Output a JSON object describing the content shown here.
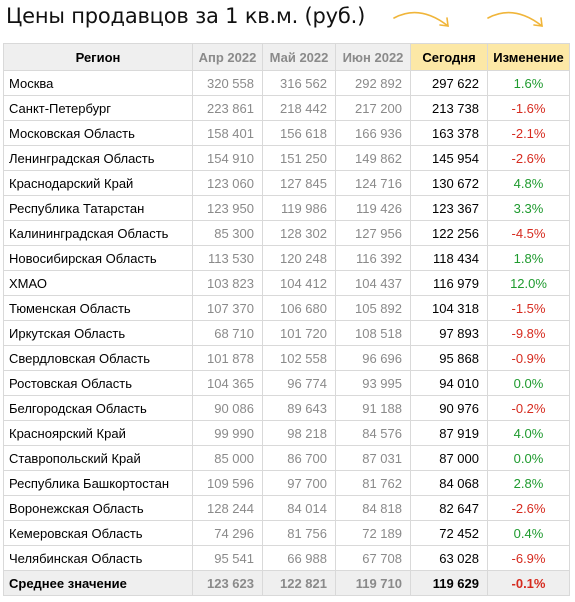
{
  "title": "Цены продавцов за 1 кв.м. (руб.)",
  "arrow_color": "#f0b53a",
  "headers": {
    "region": "Регион",
    "apr": "Апр 2022",
    "may": "Май 2022",
    "jun": "Июн 2022",
    "today": "Сегодня",
    "change": "Изменение"
  },
  "rows": [
    {
      "region": "Москва",
      "apr": "320 558",
      "may": "316 562",
      "jun": "292 892",
      "today": "297 622",
      "change": "1.6%"
    },
    {
      "region": "Санкт-Петербург",
      "apr": "223 861",
      "may": "218 442",
      "jun": "217 200",
      "today": "213 738",
      "change": "-1.6%"
    },
    {
      "region": "Московская Область",
      "apr": "158 401",
      "may": "156 618",
      "jun": "166 936",
      "today": "163 378",
      "change": "-2.1%"
    },
    {
      "region": "Ленинградская Область",
      "apr": "154 910",
      "may": "151 250",
      "jun": "149 862",
      "today": "145 954",
      "change": "-2.6%"
    },
    {
      "region": "Краснодарский Край",
      "apr": "123 060",
      "may": "127 845",
      "jun": "124 716",
      "today": "130 672",
      "change": "4.8%"
    },
    {
      "region": "Республика Татарстан",
      "apr": "123 950",
      "may": "119 986",
      "jun": "119 426",
      "today": "123 367",
      "change": "3.3%"
    },
    {
      "region": "Калининградская Область",
      "apr": "85 300",
      "may": "128 302",
      "jun": "127 956",
      "today": "122 256",
      "change": "-4.5%"
    },
    {
      "region": "Новосибирская Область",
      "apr": "113 530",
      "may": "120 248",
      "jun": "116 392",
      "today": "118 434",
      "change": "1.8%"
    },
    {
      "region": "ХМАО",
      "apr": "103 823",
      "may": "104 412",
      "jun": "104 437",
      "today": "116 979",
      "change": "12.0%"
    },
    {
      "region": "Тюменская Область",
      "apr": "107 370",
      "may": "106 680",
      "jun": "105 892",
      "today": "104 318",
      "change": "-1.5%"
    },
    {
      "region": "Иркутская Область",
      "apr": "68 710",
      "may": "101 720",
      "jun": "108 518",
      "today": "97 893",
      "change": "-9.8%"
    },
    {
      "region": "Свердловская Область",
      "apr": "101 878",
      "may": "102 558",
      "jun": "96 696",
      "today": "95 868",
      "change": "-0.9%"
    },
    {
      "region": "Ростовская Область",
      "apr": "104 365",
      "may": "96 774",
      "jun": "93 995",
      "today": "94 010",
      "change": "0.0%"
    },
    {
      "region": "Белгородская Область",
      "apr": "90 086",
      "may": "89 643",
      "jun": "91 188",
      "today": "90 976",
      "change": "-0.2%"
    },
    {
      "region": "Красноярский Край",
      "apr": "99 990",
      "may": "98 218",
      "jun": "84 576",
      "today": "87 919",
      "change": "4.0%"
    },
    {
      "region": "Ставропольский Край",
      "apr": "85 000",
      "may": "86 700",
      "jun": "87 031",
      "today": "87 000",
      "change": "0.0%"
    },
    {
      "region": "Республика Башкортостан",
      "apr": "109 596",
      "may": "97 700",
      "jun": "81 762",
      "today": "84 068",
      "change": "2.8%"
    },
    {
      "region": "Воронежская Область",
      "apr": "128 244",
      "may": "84 014",
      "jun": "84 818",
      "today": "82 647",
      "change": "-2.6%"
    },
    {
      "region": "Кемеровская Область",
      "apr": "74 296",
      "may": "81 756",
      "jun": "72 189",
      "today": "72 452",
      "change": "0.4%"
    },
    {
      "region": "Челябинская Область",
      "apr": "95 541",
      "may": "66 988",
      "jun": "67 708",
      "today": "63 028",
      "change": "-6.9%"
    }
  ],
  "average": {
    "region": "Среднее значение",
    "apr": "123 623",
    "may": "122 821",
    "jun": "119 710",
    "today": "119 629",
    "change": "-0.1%"
  }
}
